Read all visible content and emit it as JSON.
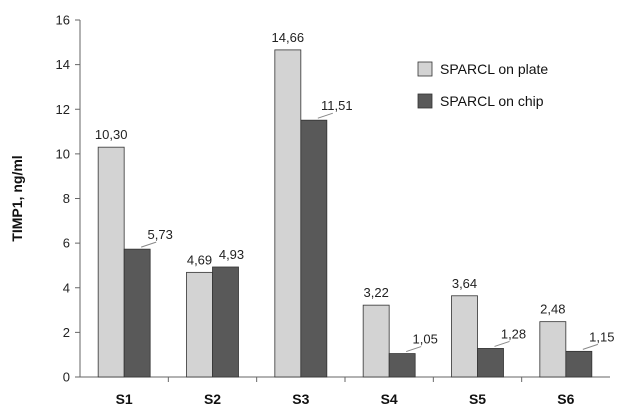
{
  "chart_data": {
    "type": "bar",
    "ylabel": "TIMP1, ng/ml",
    "ylim": [
      0,
      16
    ],
    "yticks": [
      0,
      2,
      4,
      6,
      8,
      10,
      12,
      14,
      16
    ],
    "categories": [
      "S1",
      "S2",
      "S3",
      "S4",
      "S5",
      "S6"
    ],
    "series": [
      {
        "name": "SPARCL on plate",
        "color": "#d3d3d3",
        "values": [
          10.3,
          4.69,
          14.66,
          3.22,
          3.64,
          2.48
        ],
        "labels": [
          "10,30",
          "4,69",
          "14,66",
          "3,22",
          "3,64",
          "2,48"
        ]
      },
      {
        "name": "SPARCL on chip",
        "color": "#595959",
        "values": [
          5.73,
          4.93,
          11.51,
          1.05,
          1.28,
          1.15
        ],
        "labels": [
          "5,73",
          "4,93",
          "11,51",
          "1,05",
          "1,28",
          "1,15"
        ]
      }
    ],
    "legend": "top-right",
    "grid": false
  }
}
